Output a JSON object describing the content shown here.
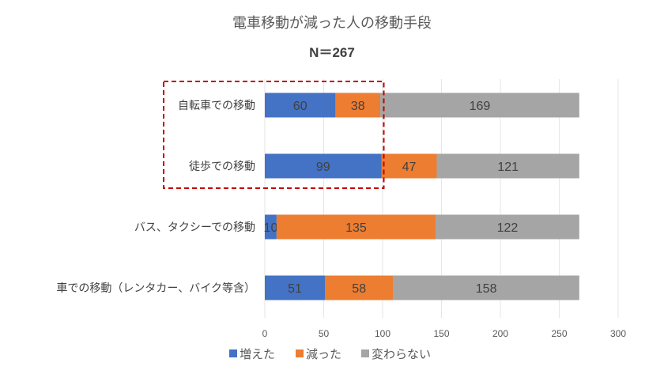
{
  "chart_data": {
    "type": "bar",
    "orientation": "horizontal",
    "stacked": true,
    "title": "電車移動が減った人の移動手段",
    "subtitle": "N＝267",
    "categories": [
      "自転車での移動",
      "徒歩での移動",
      "バス、タクシーでの移動",
      "車での移動（レンタカー、バイク等含）"
    ],
    "series": [
      {
        "name": "増えた",
        "values": [
          60,
          99,
          10,
          51
        ],
        "color": "#4472C4"
      },
      {
        "name": "減った",
        "values": [
          38,
          47,
          135,
          58
        ],
        "color": "#ED7D31"
      },
      {
        "name": "変わらない",
        "values": [
          169,
          121,
          122,
          158
        ],
        "color": "#A5A5A5"
      }
    ],
    "xlim": [
      0,
      300
    ],
    "xticks": [
      0,
      50,
      100,
      150,
      200,
      250,
      300
    ],
    "grid": true,
    "legend_position": "bottom",
    "highlight_box": {
      "categories": [
        "自転車での移動",
        "徒歩での移動"
      ],
      "color": "#C00000",
      "style": "dashed"
    }
  }
}
